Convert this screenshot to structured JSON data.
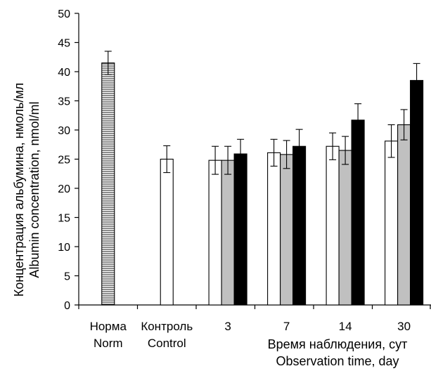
{
  "chart_data": {
    "type": "bar",
    "ylabel_line1": "Концентрация альбумина, нмоль/мл",
    "ylabel_line2": "Albumin concentration, nmol/ml",
    "xlabel_line1": "Время наблюдения, сут",
    "xlabel_line2": "Observation time, day",
    "ylim": [
      0,
      50
    ],
    "yticks": [
      0,
      5,
      10,
      15,
      20,
      25,
      30,
      35,
      40,
      45,
      50
    ],
    "groups": [
      {
        "label_line1": "Норма",
        "label_line2": "Norm",
        "bars": [
          {
            "value": 41.5,
            "error": 2.0,
            "fill": "hatched"
          }
        ]
      },
      {
        "label_line1": "Контроль",
        "label_line2": "Control",
        "bars": [
          {
            "value": 25.0,
            "error": 2.3,
            "fill": "white"
          }
        ]
      },
      {
        "label_line1": "3",
        "label_line2": "",
        "bars": [
          {
            "value": 24.8,
            "error": 2.4,
            "fill": "white"
          },
          {
            "value": 24.8,
            "error": 2.4,
            "fill": "gray"
          },
          {
            "value": 25.9,
            "error": 2.5,
            "fill": "black"
          }
        ]
      },
      {
        "label_line1": "7",
        "label_line2": "",
        "bars": [
          {
            "value": 26.1,
            "error": 2.3,
            "fill": "white"
          },
          {
            "value": 25.8,
            "error": 2.4,
            "fill": "gray"
          },
          {
            "value": 27.2,
            "error": 2.9,
            "fill": "black"
          }
        ]
      },
      {
        "label_line1": "14",
        "label_line2": "",
        "bars": [
          {
            "value": 27.2,
            "error": 2.3,
            "fill": "white"
          },
          {
            "value": 26.5,
            "error": 2.4,
            "fill": "gray"
          },
          {
            "value": 31.7,
            "error": 2.8,
            "fill": "black"
          }
        ]
      },
      {
        "label_line1": "30",
        "label_line2": "",
        "bars": [
          {
            "value": 28.1,
            "error": 2.8,
            "fill": "white"
          },
          {
            "value": 30.9,
            "error": 2.6,
            "fill": "gray"
          },
          {
            "value": 38.5,
            "error": 2.9,
            "fill": "black"
          }
        ]
      }
    ],
    "colors": {
      "white": "#ffffff",
      "gray": "#c0c0c0",
      "black": "#000000",
      "axis": "#000000"
    }
  }
}
